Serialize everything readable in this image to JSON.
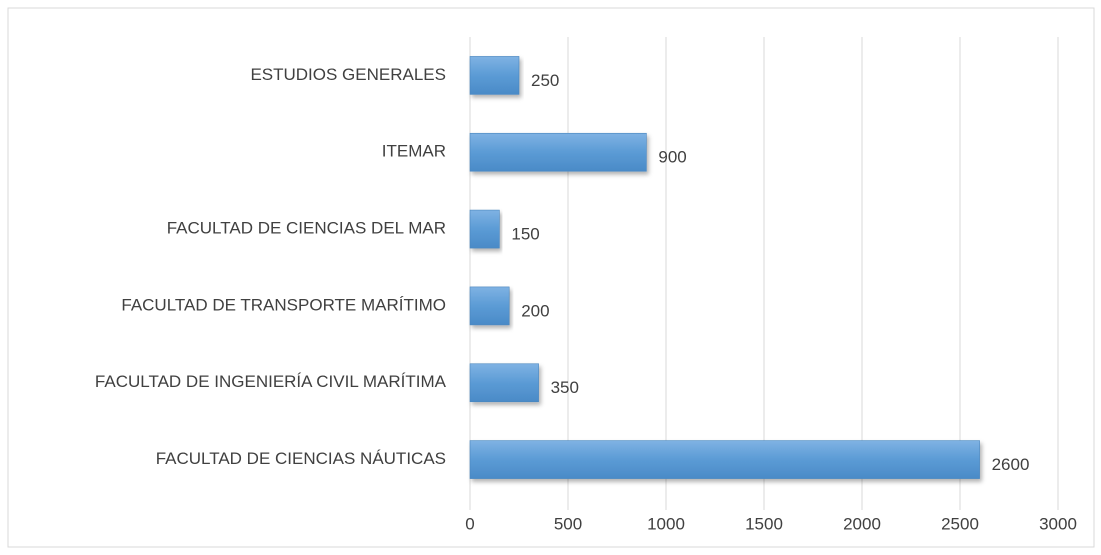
{
  "chart_data": {
    "type": "bar",
    "orientation": "horizontal",
    "categories": [
      "ESTUDIOS GENERALES",
      "ITEMAR",
      "FACULTAD DE CIENCIAS DEL MAR",
      "FACULTAD DE TRANSPORTE MARÍTIMO",
      "FACULTAD DE INGENIERÍA CIVIL MARÍTIMA",
      "FACULTAD DE CIENCIAS NÁUTICAS"
    ],
    "values": [
      250,
      900,
      150,
      200,
      350,
      2600
    ],
    "color": "#5b9bd5",
    "xlim": [
      0,
      3000
    ],
    "xticks": [
      0,
      500,
      1000,
      1500,
      2000,
      2500,
      3000
    ],
    "grid": true
  }
}
